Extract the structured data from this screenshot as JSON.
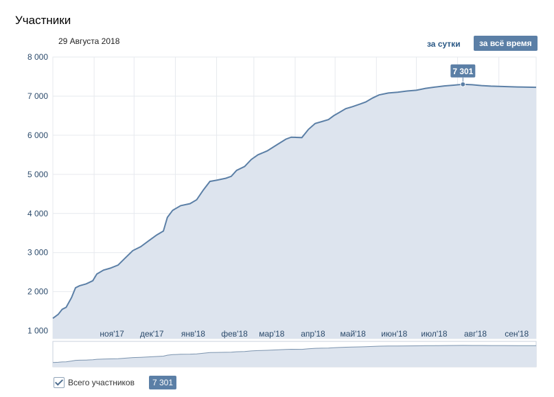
{
  "header": {
    "title": "Участники",
    "date": "29 Августа 2018",
    "btn_day": "за сутки",
    "btn_all": "за всё время"
  },
  "legend": {
    "label": "Всего участников",
    "value": "7 301"
  },
  "colors": {
    "line": "#5b7fa6",
    "fill": "#dde4ee",
    "grid": "#e6e9ee",
    "badge": "#5b7fa6"
  },
  "chart_data": {
    "type": "area",
    "title": "Участники",
    "ylim": [
      800,
      8000
    ],
    "yticks": [
      1000,
      2000,
      3000,
      4000,
      5000,
      6000,
      7000,
      8000
    ],
    "ytick_labels": [
      "1 000",
      "2 000",
      "3 000",
      "4 000",
      "5 000",
      "6 000",
      "7 000",
      "8 000"
    ],
    "xlim": [
      "2017-10-01",
      "2018-09-29"
    ],
    "month_labels": [
      {
        "date": "2017-11-01",
        "label": "ноя'17"
      },
      {
        "date": "2017-12-01",
        "label": "дек'17"
      },
      {
        "date": "2018-01-01",
        "label": "янв'18"
      },
      {
        "date": "2018-02-01",
        "label": "фев'18"
      },
      {
        "date": "2018-03-01",
        "label": "мар'18"
      },
      {
        "date": "2018-04-01",
        "label": "апр'18"
      },
      {
        "date": "2018-05-01",
        "label": "май'18"
      },
      {
        "date": "2018-06-01",
        "label": "июн'18"
      },
      {
        "date": "2018-07-01",
        "label": "июл'18"
      },
      {
        "date": "2018-08-01",
        "label": "авг'18"
      },
      {
        "date": "2018-09-01",
        "label": "сен'18"
      }
    ],
    "grid": true,
    "series": [
      {
        "name": "Всего участников",
        "points": [
          [
            "2017-10-01",
            1320
          ],
          [
            "2017-10-05",
            1420
          ],
          [
            "2017-10-08",
            1550
          ],
          [
            "2017-10-11",
            1600
          ],
          [
            "2017-10-15",
            1850
          ],
          [
            "2017-10-18",
            2100
          ],
          [
            "2017-10-21",
            2150
          ],
          [
            "2017-10-26",
            2200
          ],
          [
            "2017-10-31",
            2280
          ],
          [
            "2017-11-03",
            2450
          ],
          [
            "2017-11-08",
            2550
          ],
          [
            "2017-11-13",
            2600
          ],
          [
            "2017-11-19",
            2680
          ],
          [
            "2017-11-24",
            2850
          ],
          [
            "2017-11-30",
            3050
          ],
          [
            "2017-12-06",
            3150
          ],
          [
            "2017-12-12",
            3300
          ],
          [
            "2017-12-18",
            3450
          ],
          [
            "2017-12-23",
            3550
          ],
          [
            "2017-12-26",
            3900
          ],
          [
            "2017-12-30",
            4080
          ],
          [
            "2018-01-05",
            4200
          ],
          [
            "2018-01-12",
            4250
          ],
          [
            "2018-01-17",
            4350
          ],
          [
            "2018-01-22",
            4600
          ],
          [
            "2018-01-27",
            4820
          ],
          [
            "2018-02-01",
            4850
          ],
          [
            "2018-02-08",
            4900
          ],
          [
            "2018-02-12",
            4950
          ],
          [
            "2018-02-16",
            5100
          ],
          [
            "2018-02-22",
            5200
          ],
          [
            "2018-02-27",
            5380
          ],
          [
            "2018-03-04",
            5500
          ],
          [
            "2018-03-11",
            5600
          ],
          [
            "2018-03-18",
            5750
          ],
          [
            "2018-03-25",
            5900
          ],
          [
            "2018-03-29",
            5950
          ],
          [
            "2018-04-06",
            5940
          ],
          [
            "2018-04-11",
            6150
          ],
          [
            "2018-04-16",
            6300
          ],
          [
            "2018-04-21",
            6350
          ],
          [
            "2018-04-26",
            6400
          ],
          [
            "2018-04-30",
            6500
          ],
          [
            "2018-05-04",
            6580
          ],
          [
            "2018-05-09",
            6680
          ],
          [
            "2018-05-14",
            6730
          ],
          [
            "2018-05-20",
            6800
          ],
          [
            "2018-05-24",
            6850
          ],
          [
            "2018-05-29",
            6950
          ],
          [
            "2018-06-03",
            7030
          ],
          [
            "2018-06-10",
            7080
          ],
          [
            "2018-06-17",
            7100
          ],
          [
            "2018-06-24",
            7130
          ],
          [
            "2018-07-01",
            7150
          ],
          [
            "2018-07-08",
            7200
          ],
          [
            "2018-07-15",
            7230
          ],
          [
            "2018-07-22",
            7260
          ],
          [
            "2018-07-29",
            7280
          ],
          [
            "2018-08-05",
            7301
          ],
          [
            "2018-08-12",
            7290
          ],
          [
            "2018-08-19",
            7270
          ],
          [
            "2018-08-26",
            7255
          ],
          [
            "2018-09-05",
            7245
          ],
          [
            "2018-09-15",
            7235
          ],
          [
            "2018-09-29",
            7225
          ]
        ]
      }
    ],
    "annotation": {
      "date": "2018-08-05",
      "value": 7301,
      "label": "7 301"
    }
  }
}
